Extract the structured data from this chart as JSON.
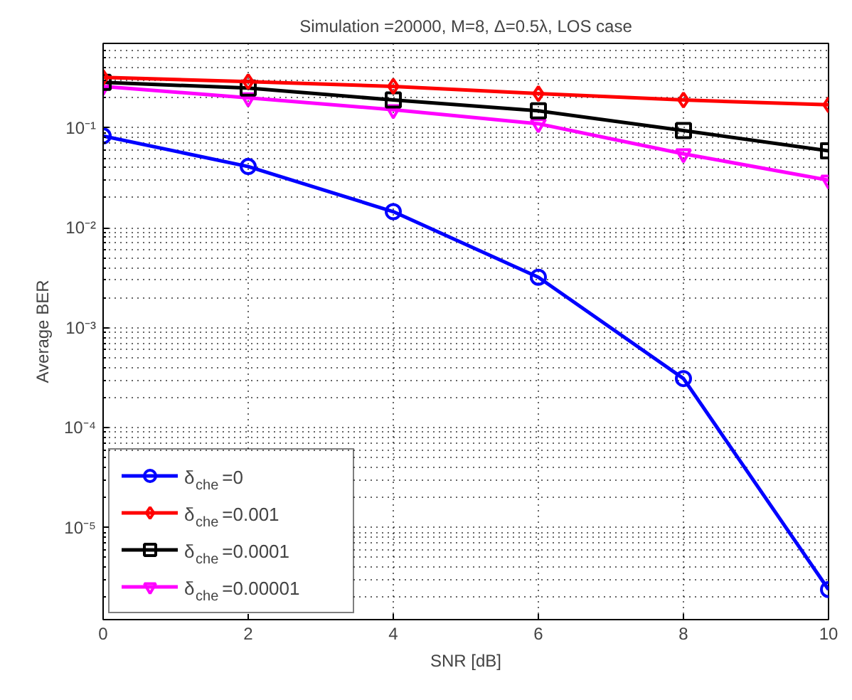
{
  "chart_data": {
    "type": "line",
    "title": "Simulation =20000, M=8, Δ=0.5λ, LOS case",
    "xlabel": "SNR [dB]",
    "ylabel": "Average BER",
    "x": [
      0,
      2,
      4,
      6,
      8,
      10
    ],
    "series": [
      {
        "name": "δ$_{che}$=0",
        "color": "#0000ff",
        "marker": "circle",
        "values": [
          0.083,
          0.041,
          0.0145,
          0.0032,
          0.00031,
          2.4e-06
        ]
      },
      {
        "name": "δ$_{che}$=0.001",
        "color": "#ff0000",
        "marker": "diamond",
        "values": [
          0.32,
          0.29,
          0.26,
          0.22,
          0.19,
          0.17
        ]
      },
      {
        "name": "δ$_{che}$=0.0001",
        "color": "#000000",
        "marker": "square",
        "values": [
          0.285,
          0.25,
          0.19,
          0.148,
          0.094,
          0.059
        ]
      },
      {
        "name": "δ$_{che}$=0.00001",
        "color": "#ff00ff",
        "marker": "triangle",
        "values": [
          0.26,
          0.2,
          0.152,
          0.11,
          0.055,
          0.03
        ]
      }
    ],
    "log": "y",
    "xlim": [
      0,
      10
    ],
    "ylim": [
      1.2e-06,
      0.7
    ],
    "xticks": [
      0,
      2,
      4,
      6,
      8,
      10
    ],
    "yticks": [
      {
        "value": 1e-05,
        "label": "10⁻⁵"
      },
      {
        "value": 0.0001,
        "label": "10⁻⁴"
      },
      {
        "value": 0.001,
        "label": "10⁻³"
      },
      {
        "value": 0.01,
        "label": "10⁻²"
      },
      {
        "value": 0.1,
        "label": "10⁻¹"
      }
    ],
    "grid": true,
    "legend": "bottom left",
    "line_style": "solid"
  }
}
